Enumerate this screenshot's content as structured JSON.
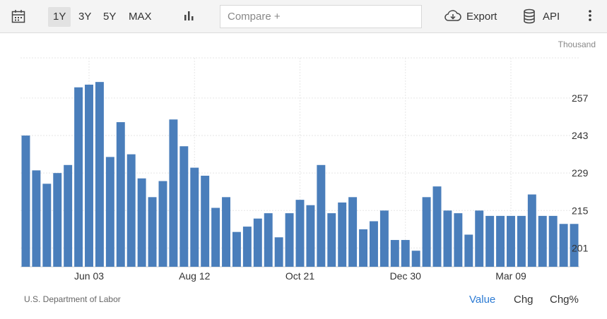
{
  "toolbar": {
    "ranges": [
      "1Y",
      "3Y",
      "5Y",
      "MAX"
    ],
    "active_range": "1Y",
    "compare_placeholder": "Compare +",
    "export_label": "Export",
    "api_label": "API"
  },
  "footer": {
    "source": "U.S. Department of Labor",
    "tabs": [
      "Value",
      "Chg",
      "Chg%"
    ],
    "active_tab": "Value"
  },
  "colors": {
    "bar": "#4a7ebb",
    "active_tab": "#2c7bd4"
  },
  "chart_data": {
    "type": "bar",
    "unit_label": "Thousand",
    "yticks": [
      201,
      215,
      229,
      243,
      257
    ],
    "xtick_labels": [
      "Jun 03",
      "Aug 12",
      "Oct 21",
      "Dec 30",
      "Mar 09"
    ],
    "xtick_bar_index": [
      6,
      16,
      26,
      36,
      46
    ],
    "ylim": [
      194,
      272
    ],
    "values": [
      243,
      230,
      225,
      229,
      232,
      261,
      262,
      263,
      235,
      248,
      236,
      227,
      220,
      226,
      249,
      239,
      231,
      228,
      216,
      220,
      207,
      209,
      212,
      214,
      205,
      214,
      219,
      217,
      232,
      214,
      218,
      220,
      208,
      211,
      215,
      204,
      204,
      200,
      220,
      224,
      215,
      214,
      206,
      215,
      213,
      213,
      213,
      213,
      221,
      213,
      213,
      210,
      210
    ],
    "grid": true
  }
}
